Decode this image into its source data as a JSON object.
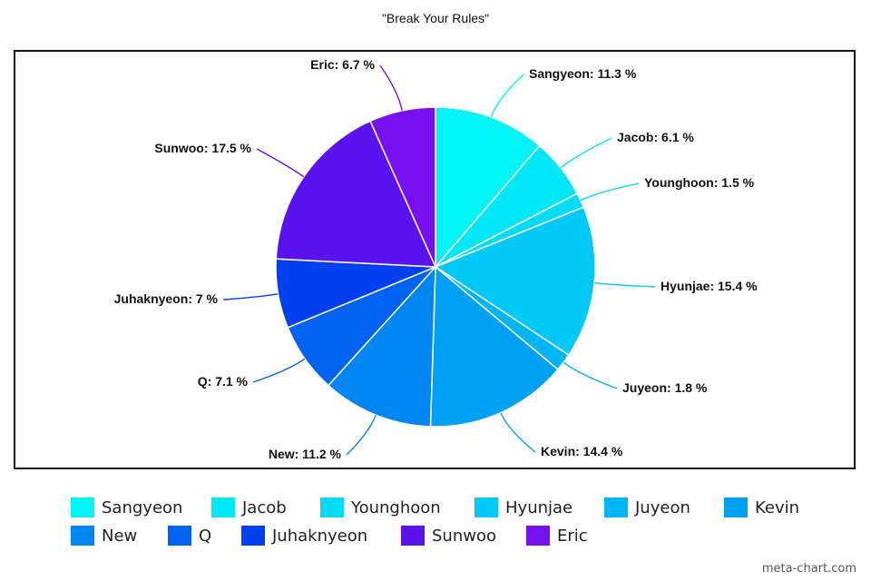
{
  "chart_data": {
    "type": "pie",
    "title": "\"Break Your Rules\"",
    "slices": [
      {
        "name": "Sangyeon",
        "value": 11.3,
        "color": "#00f6f6",
        "label": "Sangyeon: 11.3 %"
      },
      {
        "name": "Jacob",
        "value": 6.1,
        "color": "#00e8f8",
        "label": "Jacob: 6.1 %"
      },
      {
        "name": "Younghoon",
        "value": 1.5,
        "color": "#00dbf8",
        "label": "Younghoon: 1.5 %"
      },
      {
        "name": "Hyunjae",
        "value": 15.4,
        "color": "#00c8f7",
        "label": "Hyunjae: 15.4 %"
      },
      {
        "name": "Juyeon",
        "value": 1.8,
        "color": "#00b5f5",
        "label": "Juyeon: 1.8 %"
      },
      {
        "name": "Kevin",
        "value": 14.4,
        "color": "#00a0f3",
        "label": "Kevin: 14.4 %"
      },
      {
        "name": "New",
        "value": 11.2,
        "color": "#0086f2",
        "label": "New: 11.2 %"
      },
      {
        "name": "Q",
        "value": 7.1,
        "color": "#0063f0",
        "label": "Q: 7.1 %"
      },
      {
        "name": "Juhaknyeon",
        "value": 7,
        "color": "#0040ee",
        "label": "Juhaknyeon: 7 %"
      },
      {
        "name": "Sunwoo",
        "value": 17.5,
        "color": "#5a12ef",
        "label": "Sunwoo: 17.5 %"
      },
      {
        "name": "Eric",
        "value": 6.7,
        "color": "#7610ef",
        "label": "Eric: 6.7 %"
      }
    ],
    "legend_position": "bottom",
    "start_angle": "top, clockwise"
  },
  "watermark": "meta-chart.com"
}
